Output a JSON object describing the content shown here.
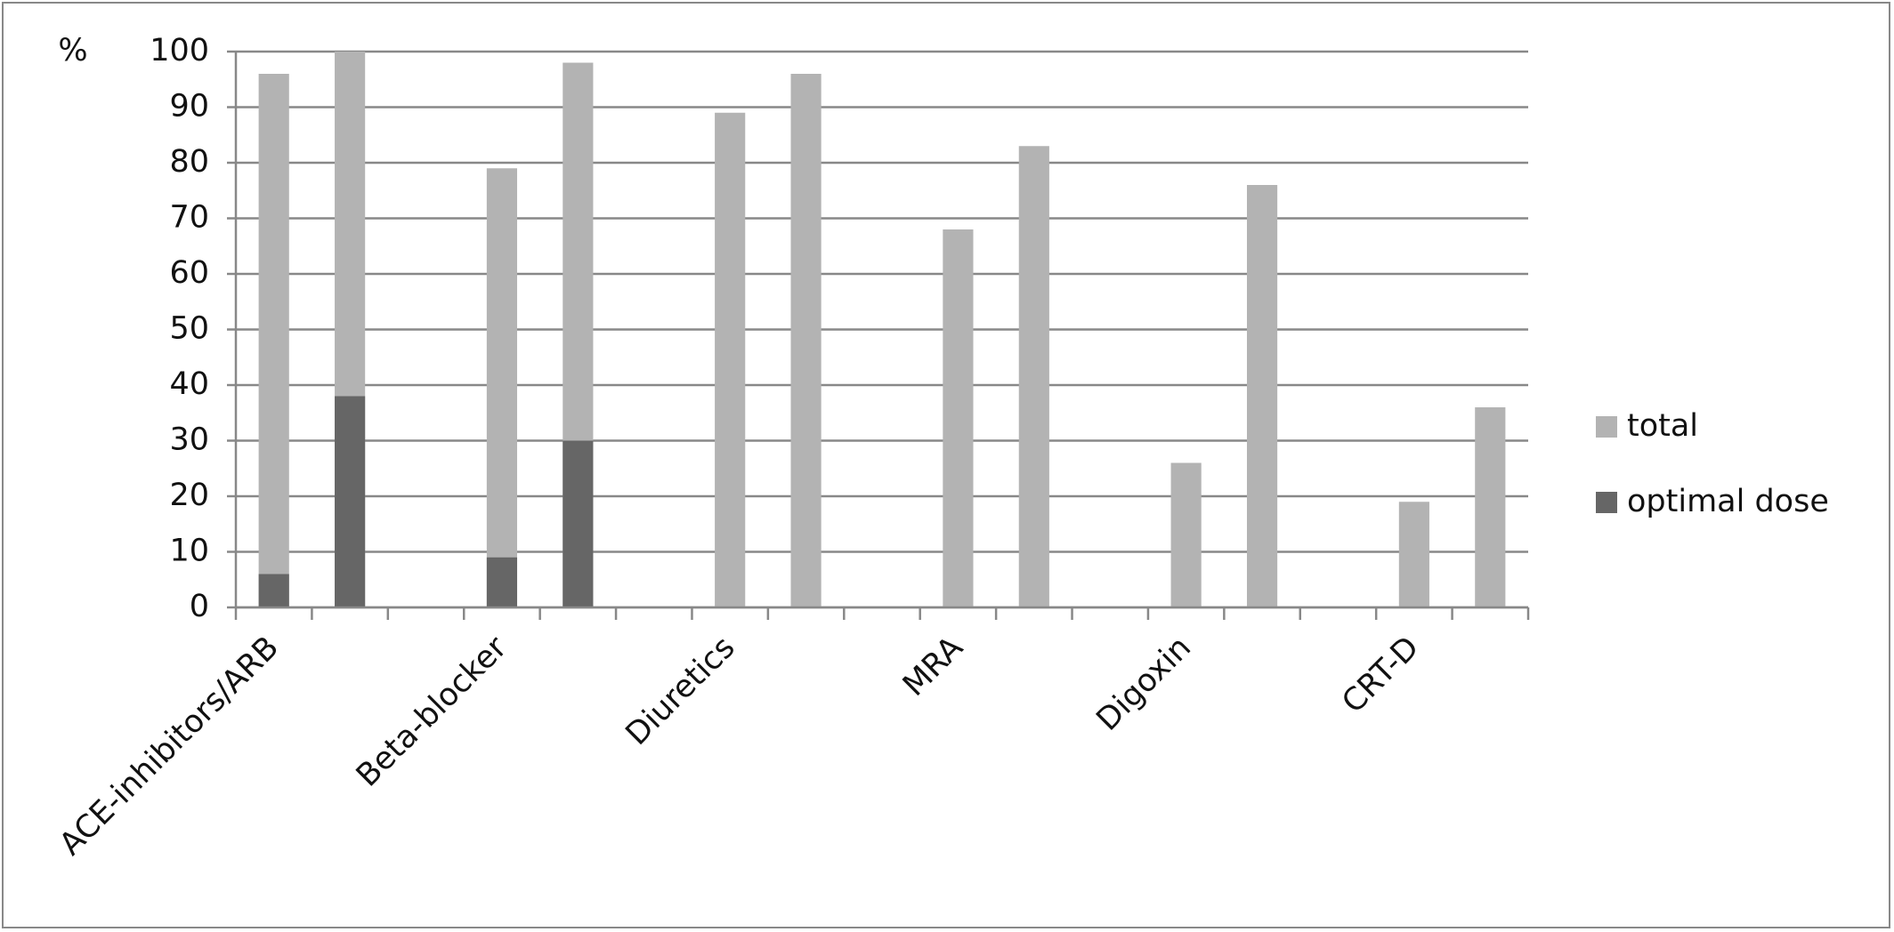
{
  "chart_data": {
    "type": "bar",
    "y_label": "%",
    "categories": [
      "ACE-inhibitors/ARB",
      null,
      null,
      "Beta-blocker",
      null,
      null,
      "Diuretics",
      null,
      null,
      "MRA",
      null,
      null,
      "Digoxin",
      null,
      null,
      "CRT-D",
      null
    ],
    "series": [
      {
        "name": "total",
        "color": "#b3b3b3",
        "values": [
          96,
          100,
          null,
          79,
          98,
          null,
          89,
          96,
          null,
          68,
          83,
          null,
          26,
          76,
          null,
          19,
          36
        ]
      },
      {
        "name": "optimal dose",
        "color": "#666666",
        "values": [
          6,
          38,
          null,
          9,
          30,
          null,
          null,
          null,
          null,
          null,
          null,
          null,
          null,
          null,
          null,
          null,
          null
        ]
      }
    ],
    "ylim": [
      0,
      100
    ],
    "yticks": [
      0,
      10,
      20,
      30,
      40,
      50,
      60,
      70,
      80,
      90,
      100
    ],
    "grid": true,
    "overlap": true,
    "legend": "right"
  }
}
